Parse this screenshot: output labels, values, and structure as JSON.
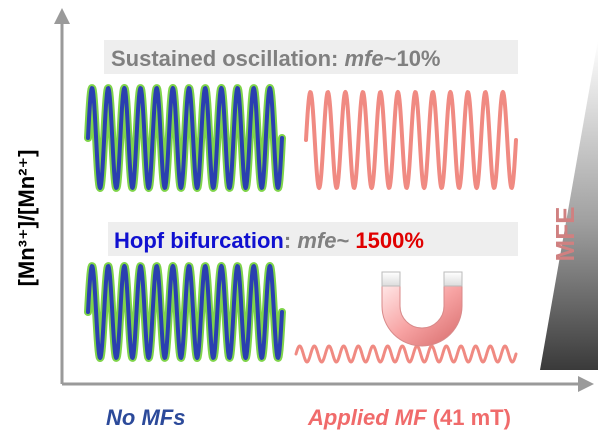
{
  "y_axis_label": "[Mn³⁺]/[Mn²⁺]",
  "top_panel": {
    "prefix": "Sustained oscillation: ",
    "mfe_word": "mfe",
    "value": "~10%"
  },
  "bottom_panel": {
    "prefix": "Hopf bifurcation",
    "colon": ": ",
    "mfe_word": "mfe",
    "tilde": "~ ",
    "value": "1500%"
  },
  "mfe_label": "MFE",
  "x_labels": {
    "no_mf": "No MFs",
    "applied_mf": "Applied MF",
    "field_strength": " (41 mT)"
  },
  "colors": {
    "axis": "#9a9a9a",
    "blue_wave": "#2a3fb0",
    "green_glow": "#7fd44a",
    "pink_wave": "#f08a82",
    "gray_text": "#808080",
    "blue_text": "#1010d0",
    "red_text": "#e00000",
    "no_mf_text": "#2c4a9a",
    "applied_text": "#f06b6b"
  },
  "waves": {
    "top_left_cycles": 12,
    "top_right_cycles": 12,
    "bottom_left_cycles": 12,
    "bottom_right_cycles": 15
  }
}
